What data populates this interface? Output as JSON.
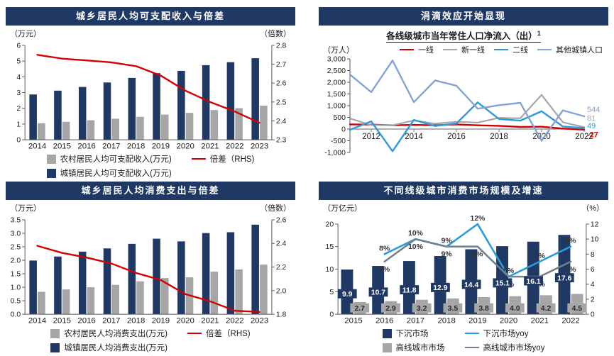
{
  "colors": {
    "navy": "#1f3864",
    "gray": "#a6a6a6",
    "red": "#d40000",
    "blue": "#2e9ad9",
    "light_blue": "#85a3d4",
    "slate": "#73808f",
    "title_text": "#ffffff"
  },
  "panels": {
    "income": {
      "title": "城乡居民人均可支配收入与倍差",
      "unit_left": "（万元）",
      "unit_right": "（倍数）",
      "legend_rows": [
        [
          {
            "swatch": "square",
            "color": "#a6a6a6",
            "label": "农村居民人均可支配收入(万元)"
          },
          {
            "swatch": "line",
            "color": "#d40000",
            "label": "倍差（RHS)"
          }
        ],
        [
          {
            "swatch": "square",
            "color": "#1f3864",
            "label": "城镇居民人均可支配收入(万元)"
          }
        ]
      ]
    },
    "population": {
      "title": "涓滴效应开始显现",
      "subtitle": "各线级城市当年常住人口净流入（出）",
      "subtitle_sup": "1",
      "unit_left": "（万人）",
      "legend_row": [
        {
          "swatch": "line",
          "color": "#d40000",
          "label": "一线"
        },
        {
          "swatch": "line",
          "color": "#a6a6a6",
          "label": "新一线"
        },
        {
          "swatch": "line",
          "color": "#2e9ad9",
          "label": "二线"
        },
        {
          "swatch": "line",
          "color": "#85a3d4",
          "label": "其他城镇人口"
        }
      ]
    },
    "spending": {
      "title": "城乡居民人均消费支出与倍差",
      "unit_left": "（万元）",
      "unit_right": "（倍数）",
      "legend_rows": [
        [
          {
            "swatch": "square",
            "color": "#a6a6a6",
            "label": "农村居民人均消费支出(万元)"
          },
          {
            "swatch": "line",
            "color": "#d40000",
            "label": "倍差（RHS)"
          }
        ],
        [
          {
            "swatch": "square",
            "color": "#1f3864",
            "label": "城镇居民人均消费支出(万元)"
          }
        ]
      ]
    },
    "market": {
      "title": "不同线级城市消费市场规模及增速",
      "unit_left": "（万亿元）",
      "unit_right": "（%）",
      "legend_rows": [
        [
          {
            "swatch": "square",
            "color": "#1f3864",
            "label": "下沉市场"
          },
          {
            "swatch": "line",
            "color": "#2e9ad9",
            "label": "下沉市场yoy"
          }
        ],
        [
          {
            "swatch": "square",
            "color": "#a6a6a6",
            "label": "高线城市市场"
          },
          {
            "swatch": "line",
            "color": "#73808f",
            "label": "高线城市市场yoy"
          }
        ]
      ]
    }
  },
  "chart_data": [
    {
      "id": "income",
      "type": "bar",
      "title": "城乡居民人均可支配收入与倍差",
      "categories": [
        "2014",
        "2015",
        "2016",
        "2017",
        "2018",
        "2019",
        "2020",
        "2021",
        "2022",
        "2023"
      ],
      "left_axis": {
        "label": "（万元）",
        "min": 0,
        "max": 6,
        "ticks": [
          [
            0,
            "0"
          ],
          [
            1,
            "1"
          ],
          [
            2,
            "2"
          ],
          [
            3,
            "3"
          ],
          [
            4,
            "4"
          ],
          [
            5,
            "5"
          ],
          [
            6,
            "6"
          ]
        ]
      },
      "right_axis": {
        "label": "（倍数）",
        "min": 2.3,
        "max": 2.8,
        "ticks": [
          [
            2.3,
            "2.3"
          ],
          [
            2.4,
            "2.4"
          ],
          [
            2.5,
            "2.5"
          ],
          [
            2.6,
            "2.6"
          ],
          [
            2.7,
            "2.7"
          ],
          [
            2.8,
            "2.8"
          ]
        ]
      },
      "bar_series": [
        {
          "name": "城镇居民人均可支配收入(万元)",
          "color": "#1f3864",
          "values": [
            2.88,
            3.12,
            3.36,
            3.64,
            3.93,
            4.23,
            4.38,
            4.74,
            4.93,
            5.18
          ]
        },
        {
          "name": "农村居民人均可支配收入(万元)",
          "color": "#a6a6a6",
          "values": [
            1.05,
            1.14,
            1.24,
            1.34,
            1.46,
            1.6,
            1.71,
            1.89,
            2.01,
            2.17
          ]
        }
      ],
      "line_series": [
        {
          "name": "倍差（RHS)",
          "color": "#d40000",
          "axis": "right",
          "width": 2.4,
          "values": [
            2.75,
            2.73,
            2.72,
            2.71,
            2.69,
            2.64,
            2.56,
            2.5,
            2.45,
            2.39
          ]
        }
      ]
    },
    {
      "id": "population",
      "type": "line",
      "title": "涓滴效应开始显现",
      "subtitle": "各线级城市当年常住人口净流入（出）1",
      "x": [
        2011,
        2012,
        2013,
        2014,
        2015,
        2016,
        2017,
        2018,
        2019,
        2020,
        2021,
        2022
      ],
      "x_ticks": [
        [
          2012,
          "2012"
        ],
        [
          2014,
          "2014"
        ],
        [
          2016,
          "2016"
        ],
        [
          2018,
          "2018"
        ],
        [
          2020,
          "2020"
        ],
        [
          2022,
          "2022"
        ]
      ],
      "y_axis": {
        "label": "（万人）",
        "min": -1000,
        "max": 3000,
        "ticks": [
          [
            -1000,
            "-1,000"
          ],
          [
            -500,
            "-500"
          ],
          [
            0,
            "0"
          ],
          [
            500,
            "500"
          ],
          [
            1000,
            "1,000"
          ],
          [
            1500,
            "1,500"
          ],
          [
            2000,
            "2,000"
          ],
          [
            2500,
            "2,500"
          ],
          [
            3000,
            "3,000"
          ]
        ]
      },
      "series": [
        {
          "name": "一线",
          "color": "#d40000",
          "width": 2.4,
          "values": [
            200,
            190,
            160,
            180,
            160,
            200,
            160,
            140,
            90,
            100,
            20,
            -27
          ]
        },
        {
          "name": "新一线",
          "color": "#a6a6a6",
          "width": 2.2,
          "values": [
            450,
            170,
            160,
            370,
            230,
            310,
            280,
            480,
            460,
            1460,
            290,
            81
          ]
        },
        {
          "name": "二线",
          "color": "#2e9ad9",
          "width": 2.4,
          "values": [
            -30,
            330,
            -950,
            390,
            130,
            240,
            1140,
            430,
            360,
            760,
            110,
            49
          ]
        },
        {
          "name": "其他城镇人口",
          "color": "#85a3d4",
          "width": 2.4,
          "values": [
            2330,
            1580,
            2930,
            1150,
            2080,
            1850,
            870,
            1020,
            1120,
            -500,
            800,
            544
          ]
        }
      ],
      "end_labels": [
        {
          "text": "544",
          "color": "#85a3d4",
          "y": 840,
          "bold": false
        },
        {
          "text": "81",
          "color": "#a6a6a6",
          "y": 450,
          "bold": false
        },
        {
          "text": "49",
          "color": "#2e9ad9",
          "y": 140,
          "bold": false
        },
        {
          "text": "-27",
          "color": "#d40000",
          "y": -240,
          "bold": true
        }
      ]
    },
    {
      "id": "spending",
      "type": "bar",
      "title": "城乡居民人均消费支出与倍差",
      "categories": [
        "2014",
        "2015",
        "2016",
        "2017",
        "2018",
        "2019",
        "2020",
        "2021",
        "2022",
        "2023"
      ],
      "left_axis": {
        "label": "（万元）",
        "min": 0,
        "max": 3.5,
        "ticks": [
          [
            0,
            "0.0"
          ],
          [
            0.5,
            "0.5"
          ],
          [
            1,
            "1.0"
          ],
          [
            1.5,
            "1.5"
          ],
          [
            2,
            "2.0"
          ],
          [
            2.5,
            "2.5"
          ],
          [
            3,
            "3.0"
          ],
          [
            3.5,
            "3.5"
          ]
        ]
      },
      "right_axis": {
        "label": "（倍数）",
        "min": 1.8,
        "max": 2.6,
        "ticks": [
          [
            1.8,
            "1.8"
          ],
          [
            2,
            "2.0"
          ],
          [
            2.2,
            "2.2"
          ],
          [
            2.4,
            "2.4"
          ],
          [
            2.6,
            "2.6"
          ]
        ]
      },
      "bar_series": [
        {
          "name": "城镇居民人均消费支出(万元)",
          "color": "#1f3864",
          "values": [
            1.99,
            2.14,
            2.32,
            2.44,
            2.61,
            2.8,
            2.7,
            3.01,
            3.04,
            3.32
          ]
        },
        {
          "name": "农村居民人均消费支出(万元)",
          "color": "#a6a6a6",
          "values": [
            0.83,
            0.92,
            1.0,
            1.09,
            1.22,
            1.34,
            1.37,
            1.58,
            1.66,
            1.84
          ]
        }
      ],
      "line_series": [
        {
          "name": "倍差（RHS)",
          "color": "#d40000",
          "axis": "right",
          "width": 2.4,
          "values": [
            2.38,
            2.32,
            2.28,
            2.23,
            2.15,
            2.09,
            1.97,
            1.91,
            1.83,
            1.82
          ]
        }
      ]
    },
    {
      "id": "market",
      "type": "bar",
      "title": "不同线级城市消费市场规模及增速",
      "categories": [
        "2015",
        "2016",
        "2017",
        "2018",
        "2019",
        "2020",
        "2021",
        "2022"
      ],
      "left_axis": {
        "label": "（万亿元）",
        "min": 0,
        "max": 20,
        "ticks": [
          [
            0,
            "0"
          ],
          [
            5,
            "5"
          ],
          [
            10,
            "10"
          ],
          [
            15,
            "15"
          ],
          [
            20,
            "20"
          ]
        ]
      },
      "right_axis": {
        "label": "（%）",
        "min": 0,
        "max": 12,
        "ticks": [
          [
            0,
            "0"
          ],
          [
            2,
            "2"
          ],
          [
            4,
            "4"
          ],
          [
            6,
            "6"
          ],
          [
            8,
            "8"
          ],
          [
            10,
            "10"
          ],
          [
            12,
            "12"
          ]
        ]
      },
      "bar_series": [
        {
          "name": "下沉市场",
          "color": "#1f3864",
          "values": [
            9.9,
            10.7,
            11.8,
            12.9,
            14.4,
            15.1,
            16.1,
            17.6
          ],
          "value_labels": {
            "texts": [
              "9.9",
              "10.7",
              "11.8",
              "12.9",
              "14.4",
              "15.1",
              "16.1",
              "17.6"
            ],
            "box_fill": "#1f3864",
            "text_fill": "#ffffff",
            "frac": 0.46
          }
        },
        {
          "name": "高线城市市场",
          "color": "#a6a6a6",
          "values": [
            2.7,
            2.9,
            3.2,
            3.5,
            3.8,
            4.0,
            4.2,
            4.5
          ],
          "value_labels": {
            "texts": [
              "2.7",
              "2.9",
              "3.2",
              "3.5",
              "3.8",
              "4.0",
              "4.2",
              "4.5"
            ],
            "box_fill": "#a6a6a6",
            "text_fill": "#26282e",
            "fixed_y": 1.4
          }
        }
      ],
      "line_series": [
        {
          "name": "下沉市场yoy",
          "color": "#2e9ad9",
          "axis": "right",
          "width": 2.6,
          "values": [
            null,
            8,
            10,
            9,
            12,
            5,
            7,
            9
          ],
          "point_labels": [
            "",
            "8%",
            "10%",
            "9%",
            "12%",
            "5%",
            "7%",
            "9%"
          ],
          "label_side": "above"
        },
        {
          "name": "高线城市市场yoy",
          "color": "#73808f",
          "axis": "right",
          "width": 2.6,
          "values": [
            null,
            7,
            10,
            9,
            9,
            5,
            5,
            7
          ],
          "point_labels": [
            "",
            "7%",
            "10%",
            "9%",
            "9%",
            "5%",
            "5%",
            "7%"
          ],
          "label_side": "below"
        }
      ]
    }
  ]
}
